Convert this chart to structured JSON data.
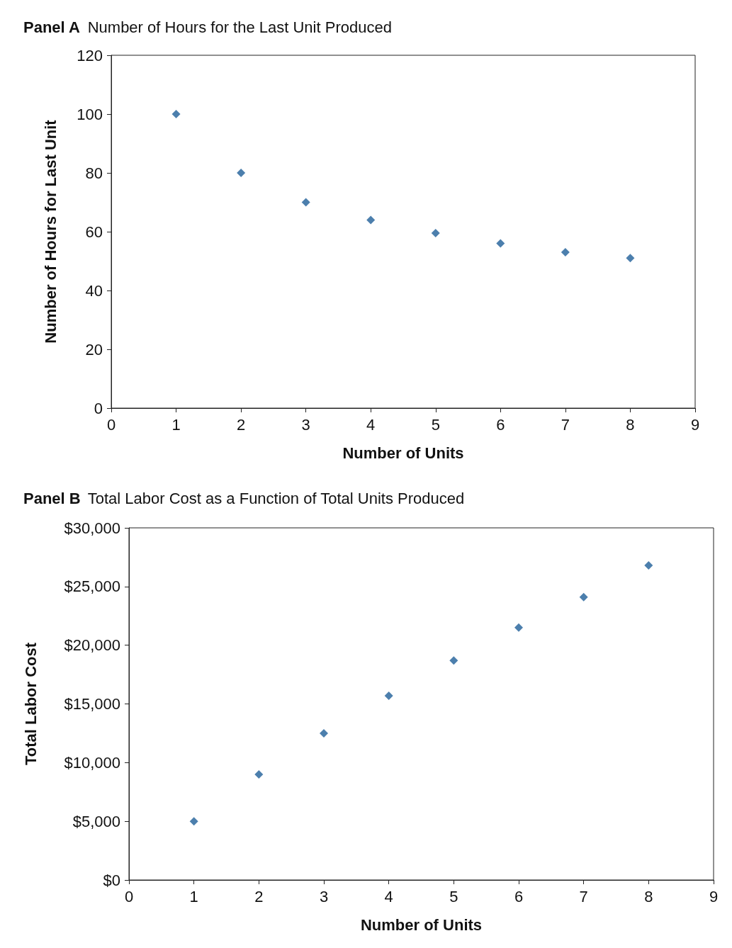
{
  "chart_data": [
    {
      "type": "scatter",
      "title": "Panel A",
      "subtitle": "Number of Hours for the Last Unit Produced",
      "xlabel": "Number of Units",
      "ylabel": "Number of Hours for Last Unit",
      "x": [
        1,
        2,
        3,
        4,
        5,
        6,
        7,
        8
      ],
      "series": [
        {
          "color": "#1f5f99",
          "values": [
            100,
            80,
            70,
            64,
            59.5,
            56,
            53,
            51
          ]
        }
      ],
      "xlim": [
        0,
        9
      ],
      "xticks": [
        0,
        1,
        2,
        3,
        4,
        5,
        6,
        7,
        8,
        9
      ],
      "ylim": [
        0,
        120
      ],
      "yticks": [
        0,
        20,
        40,
        60,
        80,
        100,
        120
      ],
      "grid": false,
      "marker": "diamond"
    },
    {
      "type": "scatter",
      "title": "Panel B",
      "subtitle": "Total Labor Cost as a Function of Total Units Produced",
      "xlabel": "Number of Units",
      "ylabel": "Total Labor Cost",
      "x": [
        1,
        2,
        3,
        4,
        5,
        6,
        7,
        8
      ],
      "series": [
        {
          "color": "#1f5f99",
          "values": [
            5000,
            9000,
            12500,
            15700,
            18700,
            21500,
            24100,
            26800
          ]
        }
      ],
      "xlim": [
        0,
        9
      ],
      "xticks": [
        0,
        1,
        2,
        3,
        4,
        5,
        6,
        7,
        8,
        9
      ],
      "ylim": [
        0,
        30000
      ],
      "yticks": [
        {
          "value": 0,
          "label": "$0"
        },
        {
          "value": 5000,
          "label": "$5,000"
        },
        {
          "value": 10000,
          "label": "$10,000"
        },
        {
          "value": 15000,
          "label": "$15,000"
        },
        {
          "value": 20000,
          "label": "$20,000"
        },
        {
          "value": 25000,
          "label": "$25,000"
        },
        {
          "value": 30000,
          "label": "$30,000"
        }
      ],
      "grid": false,
      "marker": "diamond"
    }
  ]
}
